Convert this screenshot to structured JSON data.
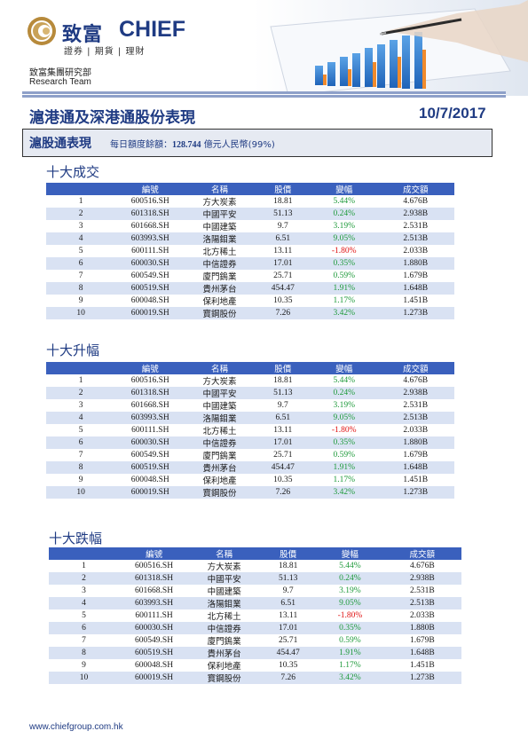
{
  "header": {
    "brand_zh": "致富",
    "brand_en": "CHIEF",
    "brand_sub": "證券 | 期貨 | 理財",
    "dept": "致富集團研究部",
    "team": "Research Team"
  },
  "title": "滬港通及深港通股份表現",
  "date": "10/7/2017",
  "quota": {
    "label": "滬股通表現",
    "prefix": "每日額度餘額：",
    "amount": "128.744",
    "suffix": "億元人民幣(99%)"
  },
  "columns": [
    "編號",
    "名稱",
    "股價",
    "變幅",
    "成交額"
  ],
  "sections": [
    {
      "title": "十大成交"
    },
    {
      "title": "十大升幅"
    },
    {
      "title": "十大跌幅"
    }
  ],
  "rows": [
    [
      "1",
      "600516.SH",
      "方大炭素",
      "18.81",
      "5.44%",
      "4.676B"
    ],
    [
      "2",
      "601318.SH",
      "中國平安",
      "51.13",
      "0.24%",
      "2.938B"
    ],
    [
      "3",
      "601668.SH",
      "中國建築",
      "9.7",
      "3.19%",
      "2.531B"
    ],
    [
      "4",
      "603993.SH",
      "洛陽鉬業",
      "6.51",
      "9.05%",
      "2.513B"
    ],
    [
      "5",
      "600111.SH",
      "北方稀土",
      "13.11",
      "-1.80%",
      "2.033B"
    ],
    [
      "6",
      "600030.SH",
      "中信證券",
      "17.01",
      "0.35%",
      "1.880B"
    ],
    [
      "7",
      "600549.SH",
      "廈門鎢業",
      "25.71",
      "0.59%",
      "1.679B"
    ],
    [
      "8",
      "600519.SH",
      "貴州茅台",
      "454.47",
      "1.91%",
      "1.648B"
    ],
    [
      "9",
      "600048.SH",
      "保利地產",
      "10.35",
      "1.17%",
      "1.451B"
    ],
    [
      "10",
      "600019.SH",
      "寶鋼股份",
      "7.26",
      "3.42%",
      "1.273B"
    ]
  ],
  "footer": "www.chiefgroup.com.hk",
  "colors": {
    "brand_blue": "#1f3b83",
    "header_row": "#3a60bd",
    "alt_row": "#d9e2f3",
    "positive": "#1e9a3a",
    "negative": "#e01010"
  }
}
